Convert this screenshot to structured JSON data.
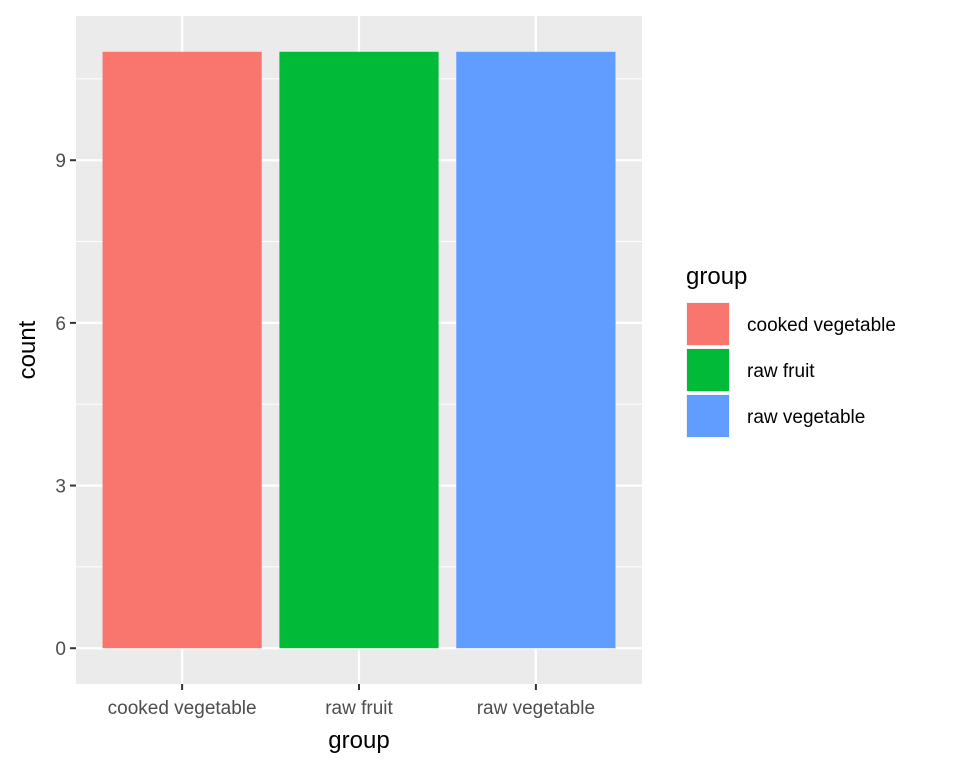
{
  "chart_data": {
    "type": "bar",
    "categories": [
      "cooked vegetable",
      "raw fruit",
      "raw vegetable"
    ],
    "values": [
      11,
      11,
      11
    ],
    "colors": [
      "#F8766D",
      "#00BA38",
      "#619CFF"
    ],
    "xlabel": "group",
    "ylabel": "count",
    "ylim": [
      -0.66,
      11.66
    ],
    "yticks": [
      0,
      3,
      6,
      9
    ],
    "yticklabels": [
      "0",
      "3",
      "6",
      "9"
    ],
    "legend": {
      "title": "group",
      "position": "right",
      "entries": [
        "cooked vegetable",
        "raw fruit",
        "raw vegetable"
      ]
    },
    "grid": true,
    "background": "#EBEBEB"
  }
}
